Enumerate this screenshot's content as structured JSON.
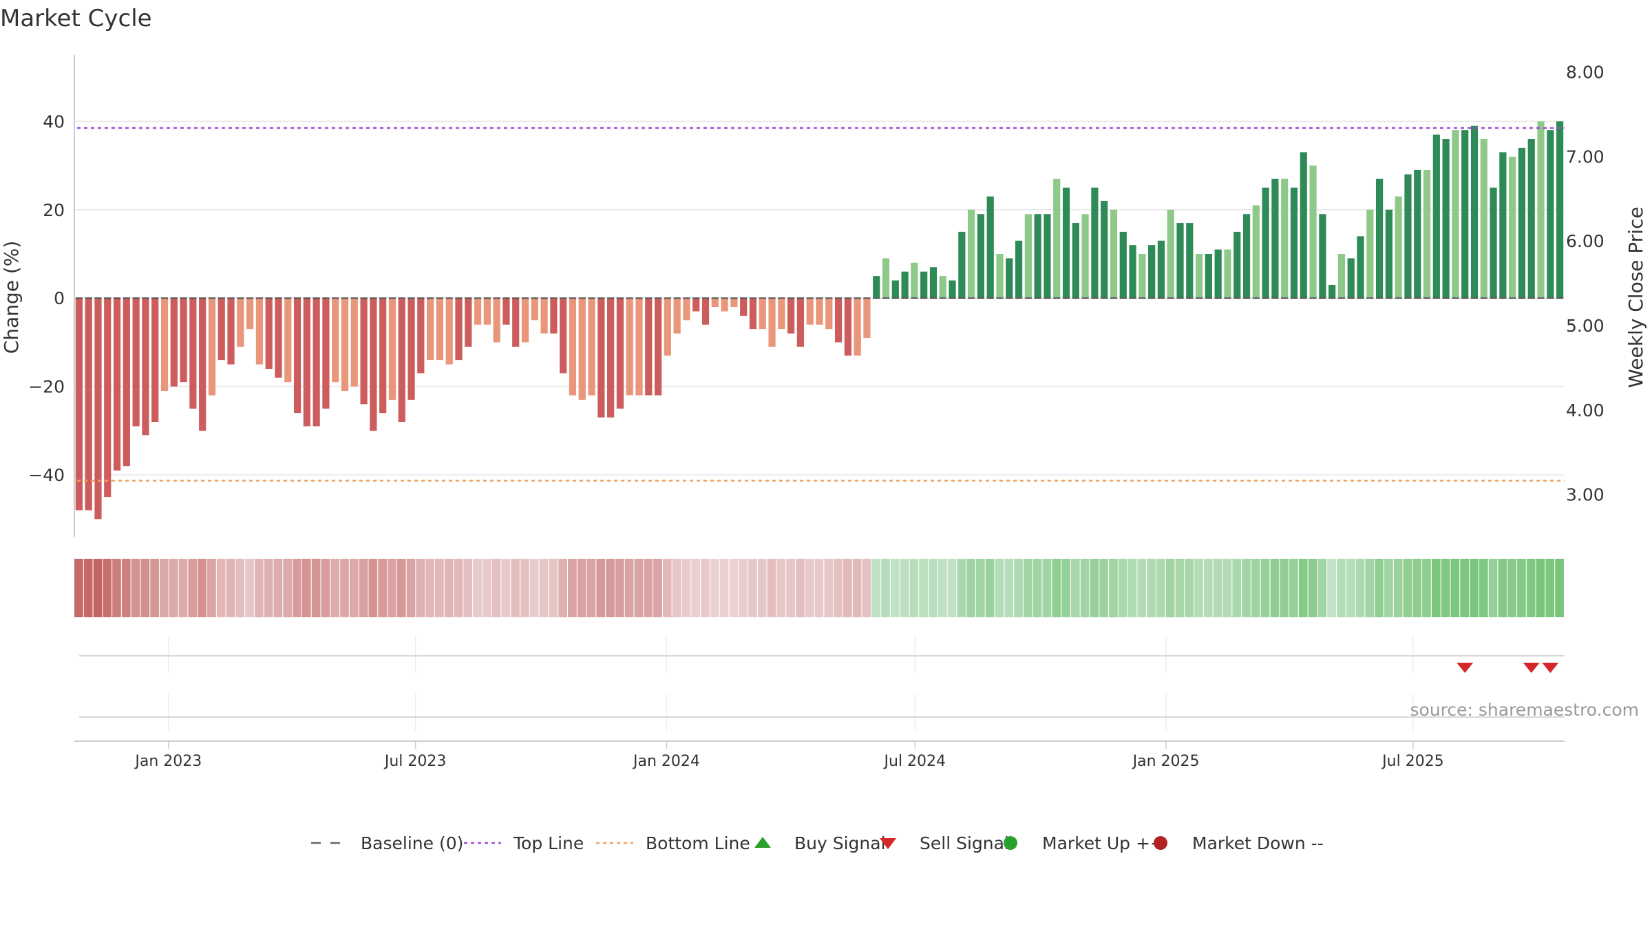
{
  "chart_data": {
    "type": "bar",
    "title": "Market Cycle",
    "ylabel_left": "Change (%)",
    "ylabel_right": "Weekly Close Price",
    "ylim_left": [
      -54,
      55
    ],
    "yticks_left": [
      -40,
      -20,
      0,
      20,
      40
    ],
    "yticks_left_labels": [
      "−40",
      "−20",
      "0",
      "20",
      "40"
    ],
    "ylim_right": [
      2.5,
      8.2
    ],
    "yticks_right": [
      "3.00",
      "4.00",
      "5.00",
      "6.00",
      "7.00",
      "8.00"
    ],
    "top_line": 38.5,
    "bottom_line": -41.3,
    "x_start": "2022-10-24",
    "x_end": "2025-10-20",
    "xticks": [
      {
        "date": "2023-01-01",
        "label": "Jan 2023"
      },
      {
        "date": "2023-07-01",
        "label": "Jul 2023"
      },
      {
        "date": "2024-01-01",
        "label": "Jan 2024"
      },
      {
        "date": "2024-07-01",
        "label": "Jul 2024"
      },
      {
        "date": "2025-01-01",
        "label": "Jan 2025"
      },
      {
        "date": "2025-07-01",
        "label": "Jul 2025"
      }
    ],
    "weekly_change": [
      -48,
      -48,
      -50,
      -45,
      -39,
      -38,
      -29,
      -31,
      -28,
      -21,
      -20,
      -19,
      -25,
      -30,
      -22,
      -14,
      -15,
      -11,
      -7,
      -15,
      -16,
      -18,
      -19,
      -26,
      -29,
      -29,
      -25,
      -19,
      -21,
      -20,
      -24,
      -30,
      -26,
      -23,
      -28,
      -23,
      -17,
      -14,
      -14,
      -15,
      -14,
      -11,
      -6,
      -6,
      -10,
      -6,
      -11,
      -10,
      -5,
      -8,
      -8,
      -17,
      -22,
      -23,
      -22,
      -27,
      -27,
      -25,
      -22,
      -22,
      -22,
      -22,
      -13,
      -8,
      -5,
      -3,
      -6,
      -2,
      -3,
      -2,
      -4,
      -7,
      -7,
      -11,
      -7,
      -8,
      -11,
      -6,
      -6,
      -7,
      -10,
      -13,
      -13,
      -9,
      5,
      9,
      4,
      6,
      8,
      6,
      7,
      5,
      4,
      15,
      20,
      19,
      23,
      10,
      9,
      13,
      19,
      19,
      19,
      27,
      25,
      17,
      19,
      25,
      22,
      20,
      15,
      12,
      10,
      12,
      13,
      20,
      17,
      17,
      10,
      10,
      11,
      11,
      15,
      19,
      21,
      25,
      27,
      27,
      25,
      33,
      30,
      19,
      3,
      10,
      9,
      14,
      20,
      27,
      20,
      23,
      28,
      29,
      29,
      37,
      36,
      38,
      38,
      39,
      36,
      25,
      33,
      32,
      34,
      36,
      40,
      38,
      40
    ],
    "series": [
      {
        "name": "Baseline (0)",
        "color": "#666666",
        "style": "dash"
      },
      {
        "name": "Top Line",
        "color": "#9b4fd6",
        "style": "dotted"
      },
      {
        "name": "Bottom Line",
        "color": "#f2a05a",
        "style": "dotted"
      },
      {
        "name": "Buy Signal",
        "color": "#2ca02c",
        "marker": "triangle-up"
      },
      {
        "name": "Sell Signal",
        "color": "#d62728",
        "marker": "triangle-down"
      },
      {
        "name": "Market Up ++",
        "color": "#2ca02c",
        "marker": "circle"
      },
      {
        "name": "Market Down --",
        "color": "#b22222",
        "marker": "circle"
      }
    ],
    "sell_signals": [
      146,
      153,
      155
    ],
    "buy_signals": [],
    "colors": {
      "red_dark": "#cd5c5c",
      "red_light": "#e9967a",
      "green_dark": "#2e8b57",
      "green_light": "#8fc98a"
    }
  },
  "source_text": "source: sharemaestro.com"
}
